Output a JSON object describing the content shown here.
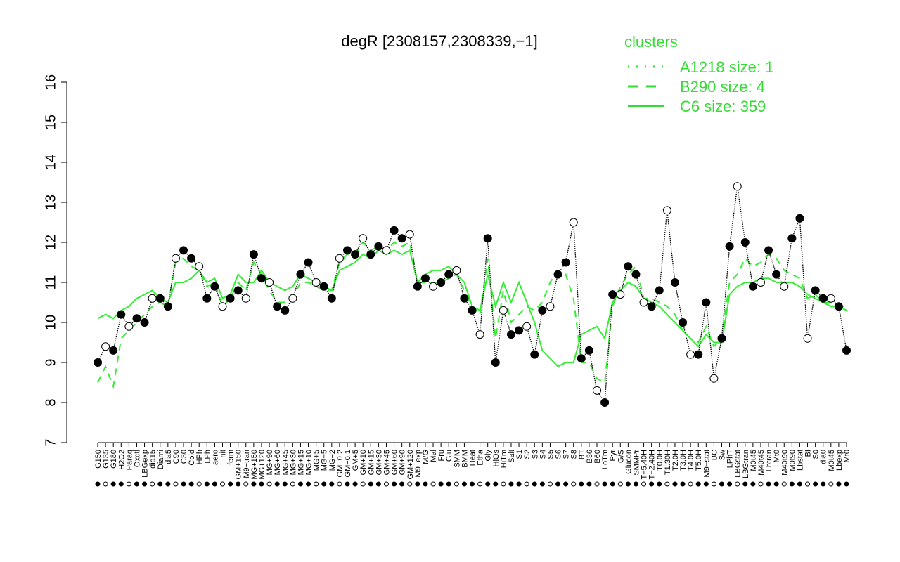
{
  "colors": {
    "axis": "#000000",
    "series_line": "#33ee33",
    "legend": "#33dd33",
    "point_filled": "#000000",
    "point_open": "#ffffff"
  },
  "legend": {
    "title": "clusters",
    "items": [
      {
        "label": "A1218 size: 1",
        "style": "dotted"
      },
      {
        "label": "B290 size: 4",
        "style": "dashed"
      },
      {
        "label": "C6 size: 359",
        "style": "solid"
      }
    ]
  },
  "chart_data": {
    "type": "line",
    "title": "degR [2308157,2308339,−1]",
    "xlabel": "",
    "ylabel": "",
    "ylim": [
      7,
      16
    ],
    "yticks": [
      7,
      8,
      9,
      10,
      11,
      12,
      13,
      14,
      15,
      16
    ],
    "grid": false,
    "legend_position": "top-right",
    "x_tick_labels": [
      "G150",
      "G135",
      "G180",
      "H2O2",
      "Paraq",
      "Oxctl",
      "LBGexp",
      "dia15",
      "Diami",
      "dia5",
      "C90",
      "C30",
      "Cold",
      "HPh",
      "LPh",
      "aero",
      "nit",
      "ferm",
      "GM+150",
      "M9−tran",
      "MG+150",
      "MG+120",
      "MG+90",
      "MG+60",
      "MG+45",
      "MG+30",
      "MG+15",
      "MG+10",
      "MG+5",
      "MG−5",
      "MG−2",
      "GM−0.2",
      "GM−0.1",
      "GM+5",
      "GM+10",
      "GM+15",
      "GM+30",
      "GM+45",
      "GM+60",
      "GM+90",
      "GM+120",
      "M9−exp",
      "M/G",
      "Mal",
      "Fru",
      "Glu",
      "SMM",
      "BMM",
      "Heat",
      "Etha",
      "Gly",
      "HiOs",
      "HiTm",
      "Salt",
      "S1",
      "S2",
      "S3",
      "S4",
      "S5",
      "S6",
      "S7",
      "S8",
      "BT",
      "B36",
      "B60",
      "LoTm",
      "Pyr",
      "G/S",
      "Glucon",
      "SMMPr",
      "T−5.40H",
      "T−2.40H",
      "T0.0H",
      "T1.30H",
      "T2.0H",
      "T3.0H",
      "T4.0H",
      "T5.0H",
      "M9−stat",
      "BC",
      "Sw",
      "LPhT",
      "LBGstat",
      "LBGtran",
      "M0t45",
      "M40t45",
      "Lbtran",
      "Mt0",
      "M40t90",
      "M0t90",
      "Lbstat",
      "BI",
      "S0",
      "dia0",
      "M0t45",
      "Lbexp",
      "Mt0"
    ],
    "series": [
      {
        "name": "C6 size: 359",
        "style": "solid",
        "values": [
          10.1,
          10.2,
          10.1,
          10.3,
          10.4,
          10.6,
          10.7,
          10.8,
          10.6,
          10.5,
          11.0,
          11.0,
          11.1,
          11.3,
          11.0,
          11.1,
          10.6,
          10.7,
          11.2,
          11.0,
          11.0,
          11.3,
          11.0,
          10.9,
          10.8,
          10.9,
          11.2,
          11.1,
          11.0,
          10.9,
          10.8,
          11.3,
          11.4,
          11.5,
          11.7,
          11.6,
          11.8,
          11.7,
          11.8,
          11.7,
          11.8,
          11.0,
          11.2,
          11.3,
          11.3,
          11.4,
          11.2,
          11.0,
          10.4,
          10.3,
          11.2,
          10.4,
          11.0,
          10.5,
          11.0,
          10.5,
          10.0,
          9.3,
          9.1,
          8.9,
          9.0,
          9.0,
          9.7,
          9.8,
          9.9,
          9.6,
          10.5,
          10.8,
          11.0,
          10.9,
          10.6,
          10.5,
          10.4,
          10.2,
          10.0,
          9.8,
          9.6,
          9.4,
          9.7,
          9.5,
          9.5,
          10.7,
          10.9,
          11.0,
          11.0,
          11.1,
          11.1,
          11.0,
          11.0,
          11.0,
          10.9,
          10.7,
          10.6,
          10.5,
          10.4,
          10.4,
          10.3
        ]
      },
      {
        "name": "B290 size: 4",
        "style": "dashed",
        "values": [
          8.5,
          8.9,
          8.4,
          9.6,
          9.8,
          10.0,
          10.2,
          10.4,
          10.5,
          10.4,
          11.5,
          11.6,
          11.4,
          11.3,
          10.9,
          11.0,
          10.4,
          10.6,
          11.0,
          10.8,
          11.5,
          11.2,
          10.8,
          10.5,
          10.5,
          10.6,
          11.0,
          11.0,
          10.9,
          10.8,
          10.8,
          11.5,
          11.7,
          11.7,
          12.0,
          11.8,
          11.9,
          11.8,
          12.0,
          11.9,
          12.0,
          11.0,
          11.0,
          11.0,
          11.0,
          11.1,
          11.2,
          10.8,
          10.4,
          10.2,
          11.6,
          9.6,
          10.8,
          10.0,
          10.2,
          10.4,
          10.3,
          10.5,
          11.0,
          11.3,
          11.2,
          10.6,
          9.0,
          9.0,
          8.6,
          8.5,
          10.4,
          10.9,
          11.2,
          11.4,
          10.6,
          10.6,
          10.5,
          10.4,
          10.2,
          9.8,
          9.6,
          9.5,
          9.9,
          9.4,
          9.6,
          11.0,
          11.2,
          11.6,
          11.4,
          11.5,
          11.7,
          11.6,
          11.3,
          11.2,
          11.1,
          10.6,
          10.7,
          10.5,
          10.5,
          10.4,
          10.4
        ]
      },
      {
        "name": "A1218 size: 1",
        "style": "dotted",
        "values": [
          9.0,
          9.4,
          9.3,
          10.2,
          9.9,
          10.1,
          10.0,
          10.6,
          10.6,
          10.4,
          11.6,
          11.8,
          11.6,
          11.4,
          10.6,
          10.9,
          10.4,
          10.6,
          10.8,
          10.6,
          11.7,
          11.1,
          11.0,
          10.4,
          10.3,
          10.6,
          11.2,
          11.5,
          11.0,
          10.9,
          10.6,
          11.6,
          11.8,
          11.7,
          12.1,
          11.7,
          11.9,
          11.8,
          12.3,
          12.1,
          12.2,
          10.9,
          11.1,
          10.9,
          11.0,
          11.2,
          11.3,
          10.6,
          10.3,
          9.7,
          12.1,
          9.0,
          10.3,
          9.7,
          9.8,
          9.9,
          9.2,
          10.3,
          10.4,
          11.2,
          11.5,
          12.5,
          9.1,
          9.3,
          8.3,
          8.0,
          10.7,
          10.7,
          11.4,
          11.2,
          10.5,
          10.4,
          10.8,
          12.8,
          11.0,
          10.0,
          9.2,
          9.2,
          10.5,
          8.6,
          9.6,
          11.9,
          13.4,
          12.0,
          10.9,
          11.0,
          11.8,
          11.2,
          10.9,
          12.1,
          12.6,
          9.6,
          10.8,
          10.6,
          10.6,
          10.4,
          9.3
        ]
      }
    ]
  }
}
